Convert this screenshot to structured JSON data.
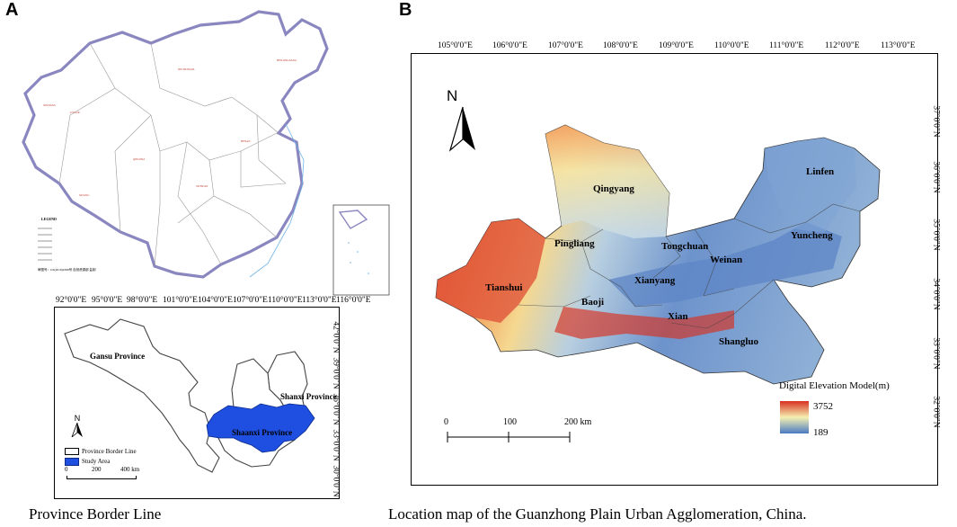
{
  "panel_a": {
    "letter": "A",
    "caption": "Province Border Line",
    "overview_legend_title": "LEGEND",
    "overview_note": "审图号：GS(2019)1698号 自然资源部 监制",
    "lon_ticks": [
      "92°0'0\"E",
      "95°0'0\"E",
      "98°0'0\"E",
      "101°0'0\"E",
      "104°0'0\"E",
      "107°0'0\"E",
      "110°0'0\"E",
      "113°0'0\"E",
      "116°0'0\"E"
    ],
    "lat_ticks": [
      "42°0'0\"N",
      "39°0'0\"N",
      "36°0'0\"N",
      "33°0'0\"N",
      "30°0'0\"N"
    ],
    "provinces": {
      "gansu": "Gansu Province",
      "shanxi": "Shanxi Province",
      "shaanxi": "Shaanxi Province"
    },
    "north": "N",
    "legend": {
      "border": "Province Border Line",
      "study": "Study Area"
    },
    "scale": {
      "zero": "0",
      "mid": "200",
      "end": "400 km"
    },
    "colors": {
      "study_area": "#1f4fe0",
      "china_border": "#8a86c0"
    }
  },
  "panel_b": {
    "letter": "B",
    "caption": "Location map of the Guanzhong Plain Urban Agglomeration, China.",
    "lon_ticks": [
      "105°0'0\"E",
      "106°0'0\"E",
      "107°0'0\"E",
      "108°0'0\"E",
      "109°0'0\"E",
      "110°0'0\"E",
      "111°0'0\"E",
      "112°0'0\"E",
      "113°0'0\"E"
    ],
    "lat_ticks": [
      "37°0'0\"N",
      "36°0'0\"N",
      "35°0'0\"N",
      "34°0'0\"N",
      "33°0'0\"N",
      "32°0'0\"N"
    ],
    "north": "N",
    "cities": {
      "qingyang": "Qingyang",
      "linfen": "Linfen",
      "pingliang": "Pingliang",
      "tongchuan": "Tongchuan",
      "yuncheng": "Yuncheng",
      "weinan": "Weinan",
      "tianshui": "Tianshui",
      "xianyang": "Xianyang",
      "baoji": "Baoji",
      "xian": "Xian",
      "shangluo": "Shangluo"
    },
    "legend": {
      "title": "Digital Elevation Model(m)",
      "high": "3752",
      "low": "189"
    },
    "scale": {
      "zero": "0",
      "mid": "100",
      "end": "200 km"
    },
    "colors": {
      "high": "#d7301f",
      "mid": "#f5f0b0",
      "low": "#4a7bc4"
    }
  }
}
